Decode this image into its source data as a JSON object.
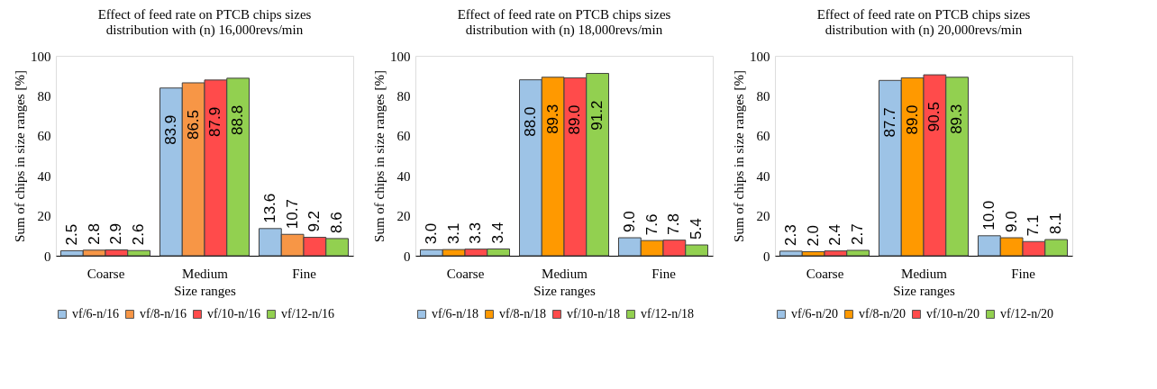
{
  "chart_data": [
    {
      "type": "bar",
      "title": [
        "Effect of feed rate on PTCB chips sizes",
        "distribution with (n) 16,000revs/min"
      ],
      "xlabel": "Size ranges",
      "ylabel": "Sum of chips in size ranges [%]",
      "categories": [
        "Coarse",
        "Medium",
        "Fine"
      ],
      "ylim": [
        0,
        100
      ],
      "yticks": [
        0,
        20,
        40,
        60,
        80,
        100
      ],
      "legend": "bottom",
      "series": [
        {
          "name": "vf/6-n/16",
          "color": "#9dc3e6",
          "values": [
            2.5,
            83.9,
            13.6
          ],
          "value_labels": [
            "2.5",
            "83.9",
            "13.6"
          ]
        },
        {
          "name": "vf/8-n/16",
          "color": "#f79646",
          "values": [
            2.8,
            86.5,
            10.7
          ],
          "value_labels": [
            "2.8",
            "86.5",
            "10.7"
          ]
        },
        {
          "name": "vf/10-n/16",
          "color": "#ff4b4b",
          "values": [
            2.9,
            87.9,
            9.2
          ],
          "value_labels": [
            "2.9",
            "87.9",
            "9.2"
          ]
        },
        {
          "name": "vf/12-n/16",
          "color": "#92d050",
          "values": [
            2.6,
            88.8,
            8.6
          ],
          "value_labels": [
            "2.6",
            "88.8",
            "8.6"
          ]
        }
      ]
    },
    {
      "type": "bar",
      "title": [
        "Effect of feed rate on PTCB chips sizes",
        "distribution with (n) 18,000revs/min"
      ],
      "xlabel": "Size ranges",
      "ylabel": "Sum of chips in size ranges [%]",
      "categories": [
        "Coarse",
        "Medium",
        "Fine"
      ],
      "ylim": [
        0,
        100
      ],
      "yticks": [
        0,
        20,
        40,
        60,
        80,
        100
      ],
      "legend": "bottom",
      "series": [
        {
          "name": "vf/6-n/18",
          "color": "#9dc3e6",
          "values": [
            3.0,
            88.0,
            9.0
          ],
          "value_labels": [
            "3.0",
            "88.0",
            "9.0"
          ]
        },
        {
          "name": "vf/8-n/18",
          "color": "#ff9900",
          "values": [
            3.1,
            89.3,
            7.6
          ],
          "value_labels": [
            "3.1",
            "89.3",
            "7.6"
          ]
        },
        {
          "name": "vf/10-n/18",
          "color": "#ff4b4b",
          "values": [
            3.3,
            89.0,
            7.8
          ],
          "value_labels": [
            "3.3",
            "89.0",
            "7.8"
          ]
        },
        {
          "name": "vf/12-n/18",
          "color": "#92d050",
          "values": [
            3.4,
            91.2,
            5.4
          ],
          "value_labels": [
            "3.4",
            "91.2",
            "5.4"
          ]
        }
      ]
    },
    {
      "type": "bar",
      "title": [
        "Effect of feed rate on PTCB chips sizes",
        "distribution with (n) 20,000revs/min"
      ],
      "xlabel": "Size ranges",
      "ylabel": "Sum of chips in size ranges [%]",
      "categories": [
        "Coarse",
        "Medium",
        "Fine"
      ],
      "ylim": [
        0,
        100
      ],
      "yticks": [
        0,
        20,
        40,
        60,
        80,
        100
      ],
      "legend": "bottom",
      "series": [
        {
          "name": "vf/6-n/20",
          "color": "#9dc3e6",
          "values": [
            2.3,
            87.7,
            10.0
          ],
          "value_labels": [
            "2.3",
            "87.7",
            "10.0"
          ]
        },
        {
          "name": "vf/8-n/20",
          "color": "#ff9900",
          "values": [
            2.0,
            89.0,
            9.0
          ],
          "value_labels": [
            "2.0",
            "89.0",
            "9.0"
          ]
        },
        {
          "name": "vf/10-n/20",
          "color": "#ff4b4b",
          "values": [
            2.4,
            90.5,
            7.1
          ],
          "value_labels": [
            "2.4",
            "90.5",
            "7.1"
          ]
        },
        {
          "name": "vf/12-n/20",
          "color": "#92d050",
          "values": [
            2.7,
            89.3,
            8.1
          ],
          "value_labels": [
            "2.7",
            "89.3",
            "8.1"
          ]
        }
      ]
    }
  ]
}
